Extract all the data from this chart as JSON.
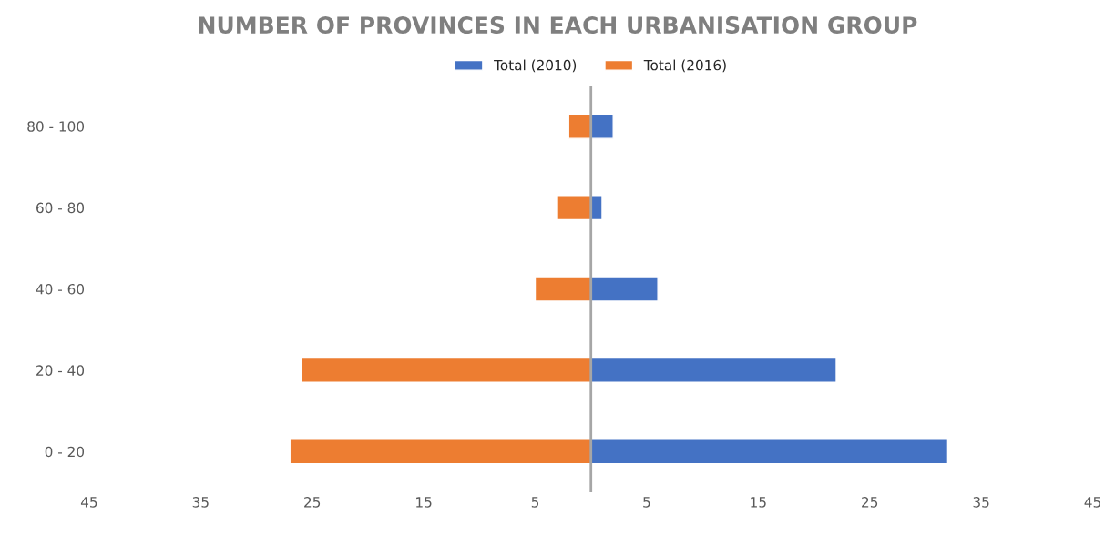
{
  "chart_data": {
    "type": "bar",
    "orientation": "horizontal",
    "title": "NUMBER OF PROVINCES IN EACH URBANISATION GROUP",
    "categories": [
      "80 - 100",
      "60 - 80",
      "40 - 60",
      "20 - 40",
      "0 - 20"
    ],
    "series": [
      {
        "name": "Total (2010)",
        "color": "#4472c4",
        "values": [
          2,
          1,
          6,
          22,
          32
        ]
      },
      {
        "name": "Total (2016)",
        "color": "#ed7d31",
        "values": [
          -2,
          -3,
          -5,
          -26,
          -27
        ]
      }
    ],
    "xlim": [
      -45,
      45
    ],
    "xticks": [
      {
        "value": -45,
        "label": "45"
      },
      {
        "value": -35,
        "label": "35"
      },
      {
        "value": -25,
        "label": "25"
      },
      {
        "value": -15,
        "label": "15"
      },
      {
        "value": -5,
        "label": "5"
      },
      5,
      15,
      25,
      35,
      45
    ],
    "ref_lines": [
      {
        "axis": "x",
        "value": 0,
        "color": "#a6a6a6"
      }
    ],
    "grid": false,
    "legend": "top",
    "stacked": true
  }
}
